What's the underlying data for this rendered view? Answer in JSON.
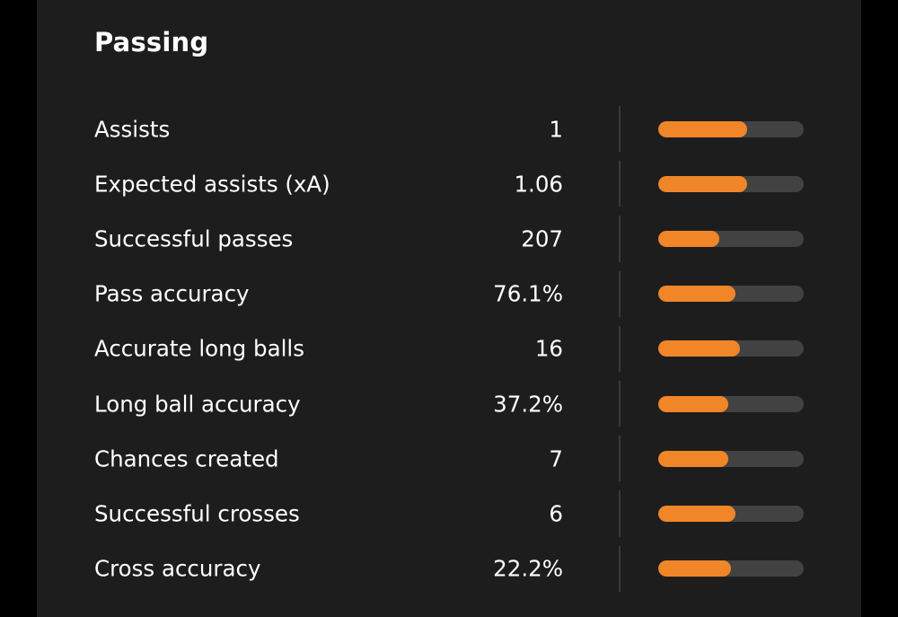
{
  "section": {
    "title": "Passing"
  },
  "colors": {
    "background": "#1d1d1d",
    "accent": "#f08627",
    "track": "#424242",
    "text": "#ffffff"
  },
  "stats": [
    {
      "label": "Assists",
      "value": "1",
      "fill": 0.61
    },
    {
      "label": "Expected assists (xA)",
      "value": "1.06",
      "fill": 0.61
    },
    {
      "label": "Successful passes",
      "value": "207",
      "fill": 0.42
    },
    {
      "label": "Pass accuracy",
      "value": "76.1%",
      "fill": 0.53
    },
    {
      "label": "Accurate long balls",
      "value": "16",
      "fill": 0.56
    },
    {
      "label": "Long ball accuracy",
      "value": "37.2%",
      "fill": 0.48
    },
    {
      "label": "Chances created",
      "value": "7",
      "fill": 0.48
    },
    {
      "label": "Successful crosses",
      "value": "6",
      "fill": 0.53
    },
    {
      "label": "Cross accuracy",
      "value": "22.2%",
      "fill": 0.5
    }
  ]
}
